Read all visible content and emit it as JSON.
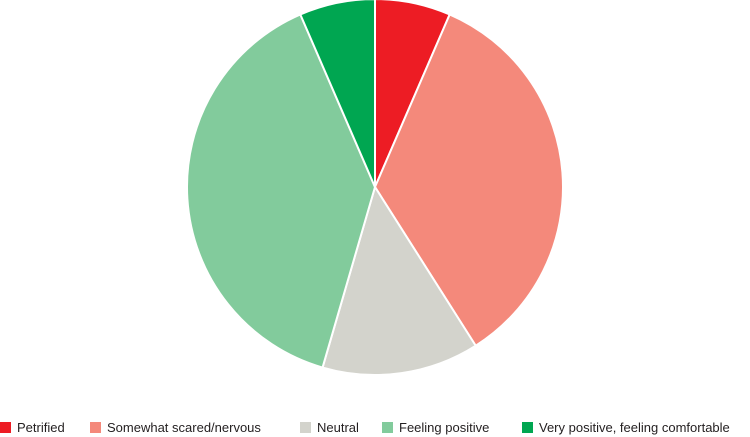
{
  "chart_data": {
    "type": "pie",
    "title": "",
    "slices": [
      {
        "label": "Petrified",
        "value": 6.5,
        "color": "#ed1c24"
      },
      {
        "label": "Somewhat scared/nervous",
        "value": 34.5,
        "color": "#f4897b"
      },
      {
        "label": "Neutral",
        "value": 13.5,
        "color": "#d3d3cc"
      },
      {
        "label": "Feeling positive",
        "value": 39,
        "color": "#82cb9c"
      },
      {
        "label": "Very positive, feeling comfortable",
        "value": 6.5,
        "color": "#00a651"
      }
    ],
    "start_angle_deg": 0,
    "direction": "clockwise",
    "legend_position": "bottom"
  }
}
